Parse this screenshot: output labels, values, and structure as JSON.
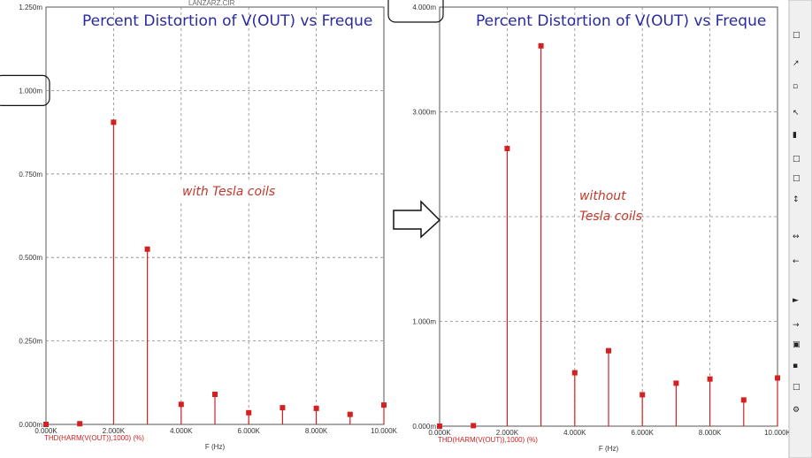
{
  "file_name": "LANZARZ.CIR",
  "arrow_icon": "right-arrow-icon",
  "chart_data": [
    {
      "type": "bar",
      "title": "Percent Distortion of V(OUT) vs Freque",
      "annotation": "with Tesla coils",
      "trace_label": "THD(HARM(V(OUT)),1000) (%)",
      "xlabel": "F (Hz)",
      "ylim": [
        0,
        1.25
      ],
      "xlim": [
        0,
        10
      ],
      "y_ticks": [
        "0.000m",
        "0.250m",
        "0.500m",
        "0.750m",
        "1.000m",
        "1.250m"
      ],
      "x_ticks": [
        "0.000K",
        "2.000K",
        "4.000K",
        "6.000K",
        "8.000K",
        "10.000K"
      ],
      "highlighted_tick": "1.000m",
      "series": [
        {
          "color": "#d42020",
          "x": [
            0,
            1,
            2,
            3,
            4,
            5,
            6,
            7,
            8,
            9,
            10
          ],
          "values": [
            0.0,
            0.002,
            0.905,
            0.525,
            0.06,
            0.09,
            0.035,
            0.05,
            0.048,
            0.03,
            0.058
          ]
        }
      ],
      "grid": true
    },
    {
      "type": "bar",
      "title": "Percent Distortion of V(OUT) vs Freque",
      "annotation_lines": [
        "without",
        "Tesla coils"
      ],
      "trace_label": "THD(HARM(V(OUT)),1000) (%)",
      "xlabel": "F (Hz)",
      "ylim": [
        0,
        4.0
      ],
      "xlim": [
        0,
        10
      ],
      "y_ticks": [
        "0.000m",
        "1.000m",
        "2.000m",
        "3.000m",
        "4.000m"
      ],
      "x_ticks": [
        "0.000K",
        "2.000K",
        "4.000K",
        "6.000K",
        "8.000K",
        "10.000K"
      ],
      "highlighted_tick": "4.000m",
      "series": [
        {
          "color": "#d42020",
          "x": [
            0,
            1,
            2,
            3,
            4,
            5,
            6,
            7,
            8,
            9,
            10
          ],
          "values": [
            0.0,
            0.005,
            2.65,
            3.63,
            0.51,
            0.72,
            0.3,
            0.41,
            0.45,
            0.25,
            0.46
          ]
        }
      ],
      "grid": true
    }
  ]
}
